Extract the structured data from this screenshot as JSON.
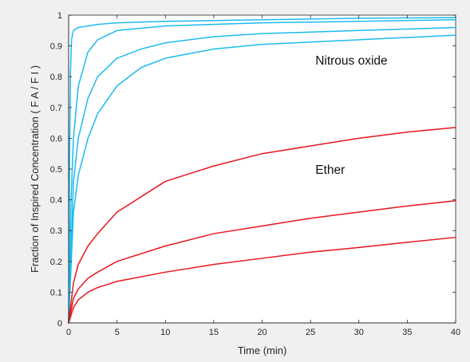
{
  "chart_data": {
    "type": "line",
    "title": "",
    "xlabel": "Time (min)",
    "ylabel": "Fraction of Inspired Concentration   ( F A / F I )",
    "xlim": [
      0,
      40
    ],
    "ylim": [
      0,
      1
    ],
    "x_ticks": [
      0,
      5,
      10,
      15,
      20,
      25,
      30,
      35,
      40
    ],
    "y_ticks": [
      0,
      0.1,
      0.2,
      0.3,
      0.4,
      0.5,
      0.6,
      0.7,
      0.8,
      0.9,
      1
    ],
    "y_tick_labels": [
      "0",
      "0.1",
      "0.2",
      "0.3",
      "0.4",
      "0.5",
      "0.6",
      "0.7",
      "0.8",
      "0.9",
      "1"
    ],
    "grid": false,
    "legend": "none",
    "colors": {
      "nitrous_oxide": "#1cbbee",
      "ether": "#e8161b",
      "background": "#f0f0f0",
      "plot_area": "#ffffff"
    },
    "annotations": [
      {
        "text": "Nitrous oxide",
        "x": 25.5,
        "y": 0.84
      },
      {
        "text": "Ether",
        "x": 25.5,
        "y": 0.485
      }
    ],
    "series": [
      {
        "group": "Nitrous oxide",
        "color": "#1cbbee",
        "x": [
          0,
          0.1,
          0.2,
          0.3,
          0.5,
          1,
          2,
          3,
          5,
          10,
          20,
          30,
          40
        ],
        "y": [
          0,
          0.55,
          0.82,
          0.92,
          0.95,
          0.96,
          0.965,
          0.97,
          0.975,
          0.98,
          0.985,
          0.99,
          0.992
        ]
      },
      {
        "group": "Nitrous oxide",
        "color": "#1cbbee",
        "x": [
          0,
          0.25,
          0.5,
          1,
          2,
          3,
          5,
          10,
          20,
          30,
          40
        ],
        "y": [
          0,
          0.4,
          0.6,
          0.77,
          0.88,
          0.92,
          0.95,
          0.965,
          0.975,
          0.98,
          0.985
        ]
      },
      {
        "group": "Nitrous oxide",
        "color": "#1cbbee",
        "x": [
          0,
          0.5,
          1,
          2,
          3,
          5,
          7.5,
          10,
          15,
          20,
          30,
          40
        ],
        "y": [
          0,
          0.46,
          0.6,
          0.73,
          0.8,
          0.86,
          0.89,
          0.91,
          0.93,
          0.94,
          0.95,
          0.96
        ]
      },
      {
        "group": "Nitrous oxide",
        "color": "#1cbbee",
        "x": [
          0,
          0.5,
          1,
          2,
          3,
          5,
          7.5,
          10,
          15,
          20,
          30,
          40
        ],
        "y": [
          0,
          0.36,
          0.48,
          0.6,
          0.68,
          0.77,
          0.83,
          0.86,
          0.89,
          0.905,
          0.92,
          0.935
        ]
      },
      {
        "group": "Ether",
        "color": "#e8161b",
        "x": [
          0,
          0.5,
          1,
          2,
          3,
          5,
          10,
          15,
          20,
          25,
          30,
          35,
          40
        ],
        "y": [
          0,
          0.13,
          0.19,
          0.25,
          0.29,
          0.36,
          0.46,
          0.51,
          0.55,
          0.575,
          0.6,
          0.62,
          0.635
        ]
      },
      {
        "group": "Ether",
        "color": "#e8161b",
        "x": [
          0,
          0.5,
          1,
          2,
          3,
          5,
          10,
          15,
          20,
          25,
          30,
          35,
          40
        ],
        "y": [
          0,
          0.08,
          0.11,
          0.145,
          0.165,
          0.2,
          0.25,
          0.29,
          0.315,
          0.34,
          0.36,
          0.38,
          0.397
        ]
      },
      {
        "group": "Ether",
        "color": "#e8161b",
        "x": [
          0,
          0.5,
          1,
          2,
          3,
          5,
          10,
          15,
          20,
          25,
          30,
          35,
          40
        ],
        "y": [
          0,
          0.05,
          0.075,
          0.1,
          0.115,
          0.135,
          0.165,
          0.19,
          0.21,
          0.23,
          0.245,
          0.262,
          0.278
        ]
      }
    ]
  }
}
